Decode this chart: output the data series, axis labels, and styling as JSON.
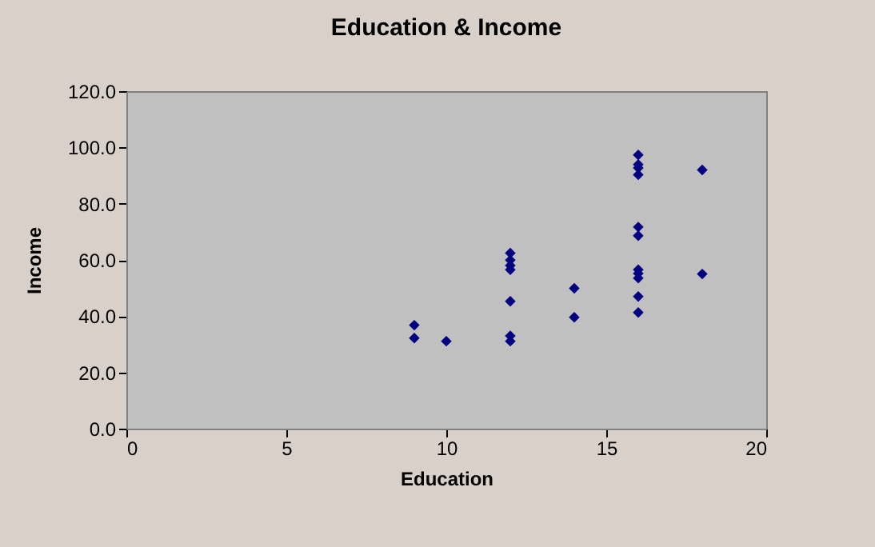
{
  "chart_data": {
    "type": "scatter",
    "title": "Education & Income",
    "xlabel": "Education",
    "ylabel": "Income",
    "x": [
      9,
      9,
      10,
      12,
      12,
      12,
      12,
      12,
      12,
      12,
      14,
      14,
      16,
      16,
      16,
      16,
      16,
      16,
      16,
      16,
      16,
      16,
      16,
      18,
      18
    ],
    "series": [
      {
        "color": "#000080",
        "values": [
          36.8,
          32.2,
          31.1,
          62.4,
          59.9,
          58,
          56.5,
          45.3,
          33,
          31.1,
          49.9,
          39.6,
          97.3,
          93.9,
          92.7,
          90.3,
          71.7,
          68.6,
          56.5,
          55.2,
          53.5,
          47,
          41.3,
          92,
          55
        ]
      }
    ],
    "xlim": [
      0,
      20
    ],
    "xticks": [
      0,
      5,
      10,
      15,
      20
    ],
    "ylim": [
      0,
      120
    ],
    "yticks": [
      {
        "value": 0,
        "label": "0.0"
      },
      {
        "value": 20,
        "label": "20.0"
      },
      {
        "value": 40,
        "label": "40.0"
      },
      {
        "value": 60,
        "label": "60.0"
      },
      {
        "value": 80,
        "label": "80.0"
      },
      {
        "value": 100,
        "label": "100.0"
      },
      {
        "value": 120,
        "label": "120.0"
      }
    ],
    "marker": "diamond",
    "grid": false
  }
}
